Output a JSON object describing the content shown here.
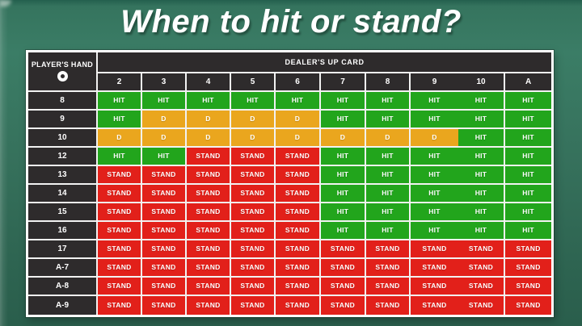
{
  "title": "When to hit or stand?",
  "colors": {
    "background": "#35705b",
    "header_cell": "#2e2b2c",
    "hit": "#22a51c",
    "double": "#eaa61e",
    "stand": "#e2201a",
    "border": "#f2f2f2",
    "title_text": "#ffffff"
  },
  "chart_data": {
    "type": "table",
    "title": "When to hit or stand?",
    "row_header_label": "PLAYER'S HAND",
    "row_header_symbol": "O",
    "column_group_label": "DEALER'S UP CARD",
    "columns": [
      "2",
      "3",
      "4",
      "5",
      "6",
      "7",
      "8",
      "9",
      "10",
      "A"
    ],
    "rows": [
      {
        "hand": "8",
        "actions": [
          "HIT",
          "HIT",
          "HIT",
          "HIT",
          "HIT",
          "HIT",
          "HIT",
          "HIT",
          "HIT",
          "HIT"
        ]
      },
      {
        "hand": "9",
        "actions": [
          "HIT",
          "D",
          "D",
          "D",
          "D",
          "HIT",
          "HIT",
          "HIT",
          "HIT",
          "HIT"
        ]
      },
      {
        "hand": "10",
        "actions": [
          "D",
          "D",
          "D",
          "D",
          "D",
          "D",
          "D",
          "D",
          "HIT",
          "HIT"
        ]
      },
      {
        "hand": "12",
        "actions": [
          "HIT",
          "HIT",
          "STAND",
          "STAND",
          "STAND",
          "HIT",
          "HIT",
          "HIT",
          "HIT",
          "HIT"
        ]
      },
      {
        "hand": "13",
        "actions": [
          "STAND",
          "STAND",
          "STAND",
          "STAND",
          "STAND",
          "HIT",
          "HIT",
          "HIT",
          "HIT",
          "HIT"
        ]
      },
      {
        "hand": "14",
        "actions": [
          "STAND",
          "STAND",
          "STAND",
          "STAND",
          "STAND",
          "HIT",
          "HIT",
          "HIT",
          "HIT",
          "HIT"
        ]
      },
      {
        "hand": "15",
        "actions": [
          "STAND",
          "STAND",
          "STAND",
          "STAND",
          "STAND",
          "HIT",
          "HIT",
          "HIT",
          "HIT",
          "HIT"
        ]
      },
      {
        "hand": "16",
        "actions": [
          "STAND",
          "STAND",
          "STAND",
          "STAND",
          "STAND",
          "HIT",
          "HIT",
          "HIT",
          "HIT",
          "HIT"
        ]
      },
      {
        "hand": "17",
        "actions": [
          "STAND",
          "STAND",
          "STAND",
          "STAND",
          "STAND",
          "STAND",
          "STAND",
          "STAND",
          "STAND",
          "STAND"
        ]
      },
      {
        "hand": "A-7",
        "actions": [
          "STAND",
          "STAND",
          "STAND",
          "STAND",
          "STAND",
          "STAND",
          "STAND",
          "STAND",
          "STAND",
          "STAND"
        ]
      },
      {
        "hand": "A-8",
        "actions": [
          "STAND",
          "STAND",
          "STAND",
          "STAND",
          "STAND",
          "STAND",
          "STAND",
          "STAND",
          "STAND",
          "STAND"
        ]
      },
      {
        "hand": "A-9",
        "actions": [
          "STAND",
          "STAND",
          "STAND",
          "STAND",
          "STAND",
          "STAND",
          "STAND",
          "STAND",
          "STAND",
          "STAND"
        ]
      }
    ]
  }
}
